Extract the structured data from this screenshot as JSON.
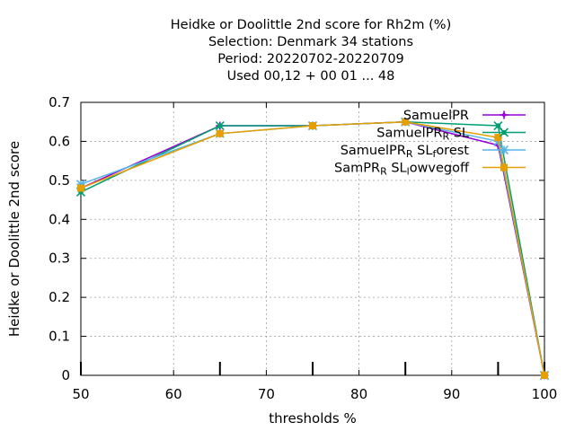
{
  "chart_data": {
    "type": "line",
    "title_lines": [
      "Heidke or Doolittle 2nd score  for Rh2m (%)",
      "Selection: Denmark     34 stations",
      "Period: 20220702-20220709",
      "Used  00,12  + 00 01 ... 48"
    ],
    "xlabel": "thresholds %",
    "ylabel": "Heidke or Doolittle 2nd score",
    "xlim": [
      50,
      100
    ],
    "ylim": [
      0,
      0.7
    ],
    "xticks": [
      50,
      60,
      70,
      80,
      90,
      100
    ],
    "yticks": [
      0,
      0.1,
      0.2,
      0.3,
      0.4,
      0.5,
      0.6,
      0.7
    ],
    "xtick_labels": [
      "50",
      "60",
      "70",
      "80",
      "90",
      "100"
    ],
    "ytick_labels": [
      "0",
      "0.1",
      "0.2",
      "0.3",
      "0.4",
      "0.5",
      "0.6",
      "0.7"
    ],
    "grid": true,
    "legend_position": "top-right",
    "x": [
      50,
      65,
      75,
      85,
      95,
      100
    ],
    "series": [
      {
        "name": "SamuelPR",
        "legend_parts": [
          [
            "SamuelPR",
            ""
          ]
        ],
        "values": [
          0.48,
          0.64,
          0.64,
          0.65,
          0.59,
          0
        ],
        "color": "#9400d3",
        "marker": "plus"
      },
      {
        "name": "SamuelPR_R SL",
        "legend_parts": [
          [
            "SamuelPR",
            ""
          ],
          [
            "R",
            "sub"
          ],
          [
            " SL",
            ""
          ]
        ],
        "values": [
          0.47,
          0.64,
          0.64,
          0.65,
          0.64,
          0
        ],
        "color": "#009e73",
        "marker": "x"
      },
      {
        "name": "SamuelPR_R SL_forest",
        "legend_parts": [
          [
            "SamuelPR",
            ""
          ],
          [
            "R",
            "sub"
          ],
          [
            " SL",
            ""
          ],
          [
            "f",
            "sub"
          ],
          [
            "orest",
            ""
          ]
        ],
        "values": [
          0.49,
          0.62,
          0.64,
          0.65,
          0.6,
          0
        ],
        "color": "#56b4e9",
        "marker": "star"
      },
      {
        "name": "SamPR_R SL_lowvegoff",
        "legend_parts": [
          [
            "SamPR",
            ""
          ],
          [
            "R",
            "sub"
          ],
          [
            " SL",
            ""
          ],
          [
            "l",
            "sub"
          ],
          [
            "owvegoff",
            ""
          ]
        ],
        "values": [
          0.48,
          0.62,
          0.64,
          0.65,
          0.61,
          0
        ],
        "color": "#e69f00",
        "marker": "box"
      }
    ]
  }
}
